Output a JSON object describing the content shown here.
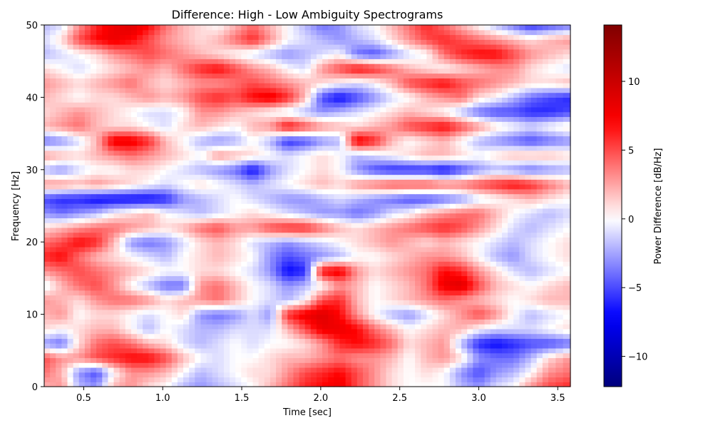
{
  "chart_data": {
    "type": "heatmap",
    "title": "Difference: High - Low Ambiguity Spectrograms",
    "xlabel": "Time [sec]",
    "ylabel": "Frequency [Hz]",
    "xlim": [
      0.25,
      3.58
    ],
    "ylim": [
      0,
      50
    ],
    "x_ticks": [
      0.5,
      1.0,
      1.5,
      2.0,
      2.5,
      3.0,
      3.5
    ],
    "x_tick_labels": [
      "0.5",
      "1.0",
      "1.5",
      "2.0",
      "2.5",
      "3.0",
      "3.5"
    ],
    "y_ticks": [
      0,
      10,
      20,
      30,
      40,
      50
    ],
    "y_tick_labels": [
      "0",
      "10",
      "20",
      "30",
      "40",
      "50"
    ],
    "colormap": "seismic",
    "colorbar": {
      "label": "Power Difference [dB/Hz]",
      "range": [
        -12.2,
        14.1
      ],
      "ticks": [
        -10,
        -5,
        0,
        5,
        10
      ],
      "tick_labels": [
        "−10",
        "−5",
        "0",
        "5",
        "10"
      ]
    },
    "grid": false,
    "x": [
      0.25,
      0.36,
      0.47,
      0.58,
      0.69,
      0.8,
      0.91,
      1.02,
      1.13,
      1.24,
      1.35,
      1.46,
      1.57,
      1.68,
      1.79,
      1.9,
      2.01,
      2.12,
      2.23,
      2.34,
      2.45,
      2.56,
      2.67,
      2.78,
      2.89,
      3.0,
      3.11,
      3.22,
      3.33,
      3.44,
      3.58
    ],
    "y": [
      0,
      2,
      4,
      6,
      8,
      10,
      12,
      14,
      16,
      18,
      20,
      22,
      24,
      26,
      28,
      30,
      32,
      34,
      36,
      38,
      40,
      42,
      44,
      46,
      48,
      50
    ],
    "z": [
      [
        2,
        3,
        -2,
        -3,
        2,
        3,
        1,
        0,
        -2,
        -3,
        -2,
        -1,
        0,
        2,
        4,
        6,
        7,
        8,
        5,
        3,
        1,
        0,
        0,
        0,
        -2,
        -3,
        -1,
        0,
        3,
        5,
        6
      ],
      [
        4,
        2,
        -3,
        -5,
        0,
        3,
        3,
        2,
        0,
        -2,
        -1,
        0,
        1,
        1,
        3,
        5,
        6,
        7,
        5,
        3,
        1,
        0,
        1,
        0,
        -3,
        -5,
        -3,
        -2,
        0,
        3,
        4
      ],
      [
        5,
        3,
        3,
        5,
        6,
        7,
        7,
        5,
        2,
        0,
        -1,
        0,
        0,
        1,
        2,
        2,
        3,
        4,
        3,
        3,
        2,
        0,
        2,
        3,
        1,
        -3,
        -4,
        -4,
        -2,
        1,
        3
      ],
      [
        -3,
        -4,
        1,
        4,
        5,
        4,
        2,
        1,
        -1,
        -2,
        -1,
        0,
        -1,
        0,
        0,
        1,
        3,
        6,
        7,
        6,
        4,
        1,
        2,
        3,
        -2,
        -6,
        -7,
        -6,
        -5,
        -5,
        -4
      ],
      [
        1,
        0,
        1,
        2,
        2,
        0,
        -2,
        0,
        -1,
        -2,
        -2,
        -1,
        -1,
        -1,
        2,
        5,
        8,
        8,
        7,
        4,
        2,
        0,
        1,
        2,
        2,
        0,
        -1,
        -1,
        -1,
        0,
        1
      ],
      [
        2,
        3,
        0,
        1,
        1,
        0,
        -1,
        0,
        1,
        -3,
        -4,
        -3,
        -1,
        -3,
        6,
        8,
        9,
        7,
        3,
        0,
        -2,
        -3,
        -1,
        1,
        3,
        5,
        3,
        0,
        -2,
        -1,
        0
      ],
      [
        3,
        2,
        1,
        3,
        4,
        4,
        3,
        1,
        2,
        3,
        4,
        2,
        0,
        -1,
        -2,
        0,
        5,
        6,
        2,
        0,
        1,
        2,
        3,
        4,
        3,
        2,
        1,
        0,
        1,
        2,
        2
      ],
      [
        -1,
        2,
        4,
        5,
        3,
        0,
        -2,
        -4,
        -4,
        3,
        4,
        2,
        0,
        -1,
        -3,
        -2,
        0,
        3,
        2,
        0,
        1,
        2,
        4,
        8,
        9,
        5,
        2,
        1,
        0,
        1,
        2
      ],
      [
        3,
        4,
        5,
        4,
        3,
        2,
        1,
        0,
        0,
        1,
        1,
        0,
        -1,
        -3,
        -7,
        -6,
        7,
        8,
        3,
        1,
        2,
        3,
        4,
        7,
        6,
        3,
        1,
        -1,
        -2,
        -1,
        0
      ],
      [
        6,
        7,
        4,
        2,
        1,
        0,
        -1,
        -2,
        0,
        1,
        2,
        1,
        0,
        -3,
        -5,
        -4,
        -3,
        -2,
        0,
        0,
        1,
        2,
        3,
        3,
        2,
        0,
        -2,
        -3,
        -1,
        0,
        1
      ],
      [
        4,
        5,
        7,
        6,
        2,
        -3,
        -4,
        -3,
        -1,
        1,
        2,
        1,
        -1,
        -2,
        -3,
        -2,
        -1,
        0,
        1,
        2,
        3,
        2,
        1,
        2,
        1,
        0,
        -1,
        -2,
        -1,
        0,
        1
      ],
      [
        1,
        2,
        3,
        4,
        4,
        3,
        2,
        1,
        2,
        4,
        5,
        3,
        3,
        5,
        6,
        6,
        4,
        2,
        1,
        2,
        3,
        4,
        5,
        6,
        5,
        3,
        1,
        -1,
        -2,
        -1,
        0
      ],
      [
        -3,
        -4,
        -3,
        -2,
        0,
        1,
        2,
        0,
        -1,
        -2,
        -1,
        0,
        1,
        0,
        -1,
        -2,
        -3,
        -3,
        -4,
        -3,
        -1,
        0,
        2,
        3,
        4,
        4,
        2,
        0,
        -1,
        -2,
        -1
      ],
      [
        -5,
        -6,
        -6,
        -7,
        -7,
        -7,
        -7,
        -6,
        -3,
        -2,
        -1,
        0,
        -1,
        -2,
        -3,
        -3,
        -2,
        -1,
        -2,
        -3,
        -4,
        -5,
        -5,
        -4,
        -3,
        -1,
        0,
        1,
        2,
        1,
        0
      ],
      [
        3,
        3,
        2,
        3,
        2,
        1,
        0,
        -1,
        0,
        1,
        0,
        -1,
        -2,
        -1,
        0,
        1,
        2,
        1,
        3,
        4,
        5,
        5,
        5,
        4,
        4,
        5,
        6,
        7,
        6,
        4,
        2
      ],
      [
        -2,
        -3,
        -1,
        0,
        0,
        1,
        1,
        0,
        -1,
        -2,
        -3,
        -4,
        -7,
        -3,
        -1,
        0,
        1,
        0,
        -3,
        -5,
        -6,
        -6,
        -6,
        -7,
        -5,
        -3,
        -2,
        -3,
        -4,
        -3,
        -2
      ],
      [
        3,
        2,
        1,
        2,
        3,
        4,
        3,
        2,
        1,
        0,
        3,
        2,
        1,
        0,
        -1,
        0,
        1,
        0,
        -2,
        -1,
        0,
        1,
        2,
        2,
        1,
        0,
        1,
        2,
        2,
        2,
        1
      ],
      [
        -4,
        -3,
        -1,
        2,
        8,
        8,
        6,
        2,
        0,
        -2,
        -3,
        -2,
        0,
        -2,
        -6,
        -5,
        -3,
        -2,
        8,
        6,
        2,
        0,
        1,
        2,
        0,
        -2,
        -3,
        -4,
        -5,
        -4,
        -3
      ],
      [
        2,
        3,
        4,
        2,
        1,
        1,
        0,
        -1,
        1,
        2,
        1,
        0,
        2,
        3,
        7,
        5,
        3,
        2,
        1,
        2,
        3,
        5,
        6,
        7,
        5,
        3,
        1,
        0,
        -1,
        0,
        1
      ],
      [
        1,
        2,
        3,
        2,
        1,
        0,
        -1,
        -1,
        0,
        3,
        3,
        2,
        1,
        0,
        -1,
        -2,
        -3,
        -2,
        -1,
        0,
        1,
        2,
        1,
        0,
        -2,
        -4,
        -5,
        -5,
        -6,
        -6,
        -5
      ],
      [
        2,
        1,
        0,
        1,
        1,
        2,
        3,
        2,
        3,
        5,
        6,
        5,
        7,
        8,
        6,
        2,
        -5,
        -7,
        -5,
        -3,
        -1,
        0,
        2,
        3,
        4,
        1,
        0,
        -2,
        -4,
        -5,
        -6
      ],
      [
        3,
        2,
        1,
        2,
        3,
        4,
        2,
        1,
        2,
        3,
        3,
        4,
        5,
        4,
        3,
        2,
        1,
        0,
        -1,
        0,
        2,
        5,
        6,
        7,
        5,
        4,
        3,
        2,
        1,
        1,
        2
      ],
      [
        1,
        0,
        -1,
        0,
        1,
        2,
        3,
        2,
        4,
        6,
        7,
        5,
        3,
        2,
        0,
        -1,
        3,
        5,
        7,
        6,
        4,
        2,
        1,
        0,
        1,
        2,
        3,
        3,
        1,
        0,
        -1
      ],
      [
        -2,
        -1,
        0,
        1,
        3,
        4,
        5,
        4,
        3,
        2,
        1,
        0,
        -1,
        -2,
        -3,
        -2,
        -1,
        0,
        -4,
        -5,
        -3,
        -1,
        0,
        4,
        6,
        7,
        7,
        5,
        3,
        2,
        1
      ],
      [
        -1,
        1,
        5,
        7,
        8,
        7,
        5,
        3,
        2,
        1,
        2,
        4,
        6,
        3,
        0,
        -1,
        -2,
        -3,
        -2,
        -1,
        1,
        3,
        5,
        6,
        5,
        4,
        3,
        2,
        1,
        2,
        3
      ],
      [
        -2,
        -1,
        3,
        6,
        8,
        9,
        7,
        4,
        2,
        1,
        0,
        2,
        4,
        2,
        0,
        -2,
        -4,
        -3,
        -1,
        0,
        2,
        4,
        6,
        4,
        2,
        0,
        -2,
        -4,
        -6,
        -5,
        -4
      ]
    ]
  }
}
